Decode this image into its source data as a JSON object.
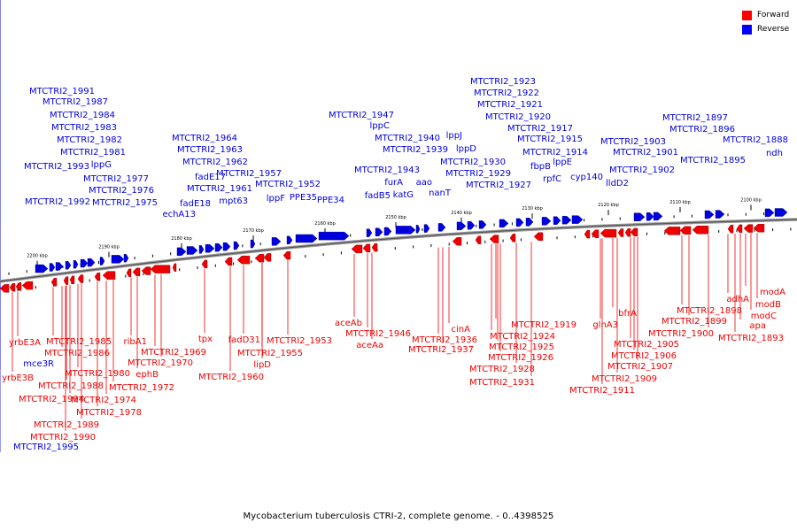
{
  "caption": "Mycobacterium tuberculosis CTRI-2, complete genome. - 0..4398525",
  "legend": [
    {
      "label": "Forward",
      "color": "#ff0000"
    },
    {
      "label": "Reverse",
      "color": "#0000ff"
    }
  ],
  "colors": {
    "forward": "#ee0000",
    "reverse": "#0000dd",
    "axis": "#888888"
  },
  "ticks": [
    "2200 kbp",
    "2190 kbp",
    "2180 kbp",
    "2170 kbp",
    "2160 kbp",
    "2150 kbp",
    "2140 kbp",
    "2130 kbp",
    "2120 kbp",
    "2110 kbp",
    "2100 kbp"
  ],
  "reverse_labels": [
    "MTCTRI2_1991",
    "MTCTRI2_1987",
    "MTCTRI2_1984",
    "MTCTRI2_1983",
    "MTCTRI2_1982",
    "MTCTRI2_1981",
    "MTCTRI2_1993",
    "lppG",
    "MTCTRI2_1977",
    "MTCTRI2_1976",
    "MTCTRI2_1992",
    "MTCTRI2_1975",
    "MTCTRI2_1964",
    "MTCTRI2_1963",
    "MTCTRI2_1962",
    "fadE17",
    "MTCTRI2_1961",
    "fadE18",
    "echA13",
    "MTCTRI2_1957",
    "mpt63",
    "MTCTRI2_1952",
    "lppF",
    "PPE35",
    "PPE34",
    "MTCTRI2_1947",
    "lppC",
    "MTCTRI2_1940",
    "MTCTRI2_1939",
    "MTCTRI2_1943",
    "furA",
    "aao",
    "fadB5",
    "katG",
    "nanT",
    "lppJ",
    "lppD",
    "MTCTRI2_1923",
    "MTCTRI2_1922",
    "MTCTRI2_1921",
    "MTCTRI2_1920",
    "MTCTRI2_1917",
    "MTCTRI2_1915",
    "MTCTRI2_1930",
    "MTCTRI2_1929",
    "MTCTRI2_1914",
    "fbpB",
    "lppE",
    "MTCTRI2_1927",
    "rpfC",
    "cyp140",
    "MTCTRI2_1897",
    "MTCTRI2_1896",
    "MTCTRI2_1903",
    "MTCTRI2_1901",
    "MTCTRI2_1888",
    "MTCTRI2_1895",
    "ndh",
    "MTCTRI2_1902",
    "lldD2",
    "mce3R",
    "MTCTRI2_1995"
  ],
  "forward_labels": [
    "yrbE3A",
    "yrbE3B",
    "MTCTRI2_1985",
    "MTCTRI2_1986",
    "MTCTRI2_1980",
    "MTCTRI2_1988",
    "MTCTRI2_1994",
    "MTCTRI2_1989",
    "MTCTRI2_1990",
    "MTCTRI2_1978",
    "MTCTRI2_1974",
    "MTCTRI2_1972",
    "ribA1",
    "ephB",
    "MTCTRI2_1969",
    "MTCTRI2_1970",
    "tpx",
    "MTCTRI2_1960",
    "fadD31",
    "MTCTRI2_1955",
    "MTCTRI2_1953",
    "lipD",
    "aceAb",
    "MTCTRI2_1946",
    "aceAa",
    "cinA",
    "MTCTRI2_1936",
    "MTCTRI2_1937",
    "MTCTRI2_1919",
    "MTCTRI2_1924",
    "MTCTRI2_1925",
    "MTCTRI2_1926",
    "MTCTRI2_1928",
    "MTCTRI2_1931",
    "glnA3",
    "bfrA",
    "MTCTRI2_1905",
    "MTCTRI2_1906",
    "MTCTRI2_1907",
    "MTCTRI2_1909",
    "MTCTRI2_1911",
    "MTCTRI2_1898",
    "MTCTRI2_1899",
    "MTCTRI2_1900",
    "adhA",
    "modA",
    "modB",
    "modC",
    "apa",
    "MTCTRI2_1893"
  ]
}
